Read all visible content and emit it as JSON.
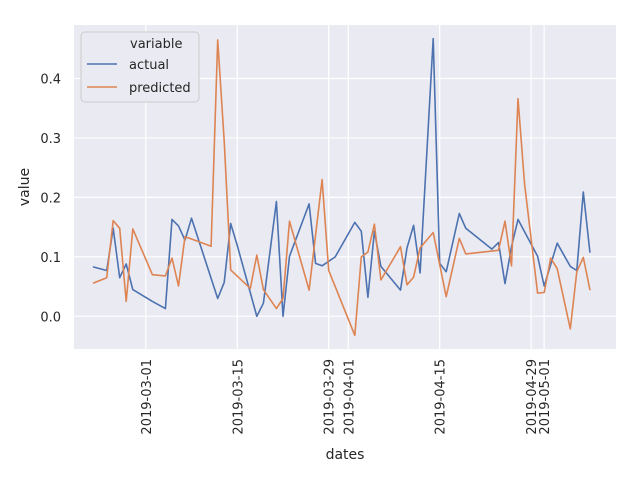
{
  "chart_data": {
    "type": "line",
    "xlabel": "dates",
    "ylabel": "value",
    "x_tick_labels": [
      "2019-03-01",
      "2019-03-15",
      "2019-03-29",
      "2019-04-01",
      "2019-04-15",
      "2019-04-29",
      "2019-05-01"
    ],
    "y_tick_labels": [
      "0.0",
      "0.1",
      "0.2",
      "0.3",
      "0.4"
    ],
    "y_ticks": [
      0.0,
      0.1,
      0.2,
      0.3,
      0.4
    ],
    "xlim": [
      "2019-02-18",
      "2019-05-12"
    ],
    "ylim": [
      -0.055,
      0.49
    ],
    "grid": true,
    "background_color": "#eaeaf2",
    "legend": {
      "title": "variable",
      "placement": "top-left",
      "entries": [
        "actual",
        "predicted"
      ]
    },
    "series": [
      {
        "name": "actual",
        "color": "#4c72b0",
        "points": [
          [
            "2019-02-21",
            0.083
          ],
          [
            "2019-02-23",
            0.077
          ],
          [
            "2019-02-24",
            0.148
          ],
          [
            "2019-02-25",
            0.065
          ],
          [
            "2019-02-26",
            0.088
          ],
          [
            "2019-02-27",
            0.045
          ],
          [
            "2019-03-02",
            0.025
          ],
          [
            "2019-03-04",
            0.013
          ],
          [
            "2019-03-05",
            0.163
          ],
          [
            "2019-03-06",
            0.152
          ],
          [
            "2019-03-07",
            0.128
          ],
          [
            "2019-03-08",
            0.165
          ],
          [
            "2019-03-12",
            0.03
          ],
          [
            "2019-03-13",
            0.057
          ],
          [
            "2019-03-14",
            0.156
          ],
          [
            "2019-03-15",
            0.119
          ],
          [
            "2019-03-18",
            0.0
          ],
          [
            "2019-03-19",
            0.022
          ],
          [
            "2019-03-21",
            0.193
          ],
          [
            "2019-03-22",
            0.0
          ],
          [
            "2019-03-23",
            0.101
          ],
          [
            "2019-03-26",
            0.189
          ],
          [
            "2019-03-27",
            0.089
          ],
          [
            "2019-03-28",
            0.085
          ],
          [
            "2019-03-30",
            0.1
          ],
          [
            "2019-04-02",
            0.158
          ],
          [
            "2019-04-03",
            0.143
          ],
          [
            "2019-04-04",
            0.032
          ],
          [
            "2019-04-05",
            0.143
          ],
          [
            "2019-04-06",
            0.084
          ],
          [
            "2019-04-09",
            0.044
          ],
          [
            "2019-04-10",
            0.115
          ],
          [
            "2019-04-11",
            0.153
          ],
          [
            "2019-04-12",
            0.073
          ],
          [
            "2019-04-14",
            0.467
          ],
          [
            "2019-04-15",
            0.089
          ],
          [
            "2019-04-16",
            0.075
          ],
          [
            "2019-04-18",
            0.173
          ],
          [
            "2019-04-19",
            0.148
          ],
          [
            "2019-04-23",
            0.113
          ],
          [
            "2019-04-24",
            0.124
          ],
          [
            "2019-04-25",
            0.055
          ],
          [
            "2019-04-26",
            0.117
          ],
          [
            "2019-04-27",
            0.163
          ],
          [
            "2019-04-30",
            0.101
          ],
          [
            "2019-05-01",
            0.051
          ],
          [
            "2019-05-03",
            0.123
          ],
          [
            "2019-05-05",
            0.084
          ],
          [
            "2019-05-06",
            0.077
          ],
          [
            "2019-05-07",
            0.209
          ],
          [
            "2019-05-08",
            0.108
          ]
        ]
      },
      {
        "name": "predicted",
        "color": "#dd8452",
        "points": [
          [
            "2019-02-21",
            0.056
          ],
          [
            "2019-02-23",
            0.065
          ],
          [
            "2019-02-24",
            0.161
          ],
          [
            "2019-02-25",
            0.148
          ],
          [
            "2019-02-26",
            0.025
          ],
          [
            "2019-02-27",
            0.147
          ],
          [
            "2019-03-02",
            0.07
          ],
          [
            "2019-03-04",
            0.068
          ],
          [
            "2019-03-05",
            0.098
          ],
          [
            "2019-03-06",
            0.051
          ],
          [
            "2019-03-07",
            0.134
          ],
          [
            "2019-03-08",
            0.13
          ],
          [
            "2019-03-11",
            0.118
          ],
          [
            "2019-03-12",
            0.465
          ],
          [
            "2019-03-13",
            0.295
          ],
          [
            "2019-03-14",
            0.078
          ],
          [
            "2019-03-17",
            0.047
          ],
          [
            "2019-03-18",
            0.103
          ],
          [
            "2019-03-19",
            0.045
          ],
          [
            "2019-03-21",
            0.013
          ],
          [
            "2019-03-22",
            0.03
          ],
          [
            "2019-03-23",
            0.16
          ],
          [
            "2019-03-26",
            0.044
          ],
          [
            "2019-03-28",
            0.23
          ],
          [
            "2019-03-29",
            0.077
          ],
          [
            "2019-03-30",
            0.05
          ],
          [
            "2019-04-02",
            -0.032
          ],
          [
            "2019-04-03",
            0.1
          ],
          [
            "2019-04-04",
            0.108
          ],
          [
            "2019-04-05",
            0.155
          ],
          [
            "2019-04-06",
            0.061
          ],
          [
            "2019-04-09",
            0.117
          ],
          [
            "2019-04-10",
            0.053
          ],
          [
            "2019-04-11",
            0.066
          ],
          [
            "2019-04-12",
            0.115
          ],
          [
            "2019-04-14",
            0.141
          ],
          [
            "2019-04-16",
            0.033
          ],
          [
            "2019-04-18",
            0.131
          ],
          [
            "2019-04-19",
            0.105
          ],
          [
            "2019-04-24",
            0.111
          ],
          [
            "2019-04-25",
            0.16
          ],
          [
            "2019-04-26",
            0.085
          ],
          [
            "2019-04-27",
            0.366
          ],
          [
            "2019-04-28",
            0.222
          ],
          [
            "2019-04-30",
            0.039
          ],
          [
            "2019-05-01",
            0.04
          ],
          [
            "2019-05-02",
            0.098
          ],
          [
            "2019-05-03",
            0.08
          ],
          [
            "2019-05-05",
            -0.021
          ],
          [
            "2019-05-06",
            0.075
          ],
          [
            "2019-05-07",
            0.099
          ],
          [
            "2019-05-08",
            0.045
          ]
        ]
      }
    ]
  }
}
